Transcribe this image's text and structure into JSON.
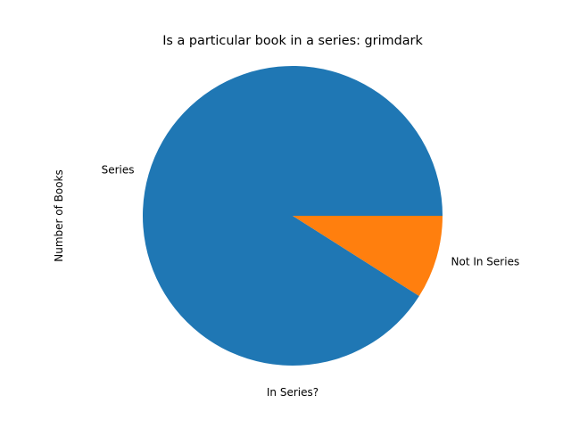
{
  "chart_data": {
    "type": "pie",
    "title": "Is a particular book in a series: grimdark",
    "xlabel": "In Series?",
    "ylabel": "Number of Books",
    "labels": [
      "Series",
      "Not In Series"
    ],
    "values": [
      91,
      9
    ],
    "colors": [
      "#1f77b4",
      "#ff7f0e"
    ],
    "start_angle_deg": 0,
    "direction": "counterclockwise",
    "legend": false,
    "grid": false
  }
}
